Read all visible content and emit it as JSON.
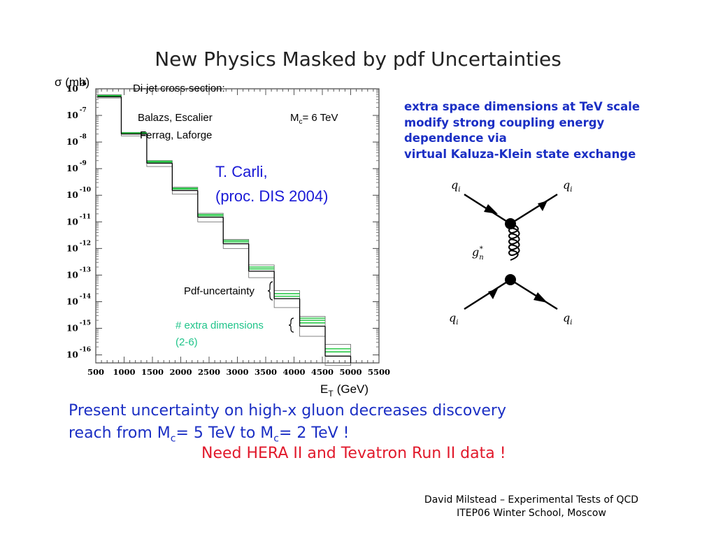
{
  "slide": {
    "title": "New Physics Masked by pdf Uncertainties",
    "blue_note": [
      "extra space dimensions at TeV scale",
      "modify strong coupling energy",
      "dependence  via",
      "virtual Kaluza-Klein state exchange"
    ],
    "conclusion_part1": "Present uncertainty on high-x gluon decreases discovery",
    "conclusion_part2_prefix": "reach from M",
    "conclusion_sub": "c",
    "conclusion_part2_mid": "= 5 TeV to M",
    "conclusion_part2_suffix": "= 2 TeV !",
    "need_line": "Need HERA II and Tevatron Run II data !",
    "footer": [
      "David Milstead – Experimental Tests of QCD",
      "ITEP06 Winter School, Moscow"
    ]
  },
  "chart_data": {
    "type": "bar",
    "title": "Di-jet cross-section:",
    "ylabel": "σ (mb)",
    "xlabel": "E",
    "xlabel_sub": "T",
    "xlabel_unit": "(GeV)",
    "xlim": [
      500,
      5500
    ],
    "ylim_log10": [
      -16.3,
      -6
    ],
    "yscale": "log",
    "x_ticks": [
      "500",
      "1000",
      "1500",
      "2000",
      "2500",
      "3000",
      "3500",
      "4000",
      "4500",
      "5000",
      "5500"
    ],
    "y_ticks": [
      {
        "base": "10",
        "exp": "-6"
      },
      {
        "base": "10",
        "exp": "-7"
      },
      {
        "base": "10",
        "exp": "-8"
      },
      {
        "base": "10",
        "exp": "-9"
      },
      {
        "base": "10",
        "exp": "-10"
      },
      {
        "base": "10",
        "exp": "-11"
      },
      {
        "base": "10",
        "exp": "-12"
      },
      {
        "base": "10",
        "exp": "-13"
      },
      {
        "base": "10",
        "exp": "-14"
      },
      {
        "base": "10",
        "exp": "-15"
      },
      {
        "base": "10",
        "exp": "-16"
      }
    ],
    "bins": [
      {
        "lo": 530,
        "hi": 950,
        "sm": 5e-07,
        "unc_up": 6e-07,
        "unc_lo": 4.5e-07,
        "xd": [
          5.3e-07,
          5.6e-07
        ]
      },
      {
        "lo": 950,
        "hi": 1400,
        "sm": 2e-08,
        "unc_up": 2.3e-08,
        "unc_lo": 1.7e-08,
        "xd": [
          2.1e-08,
          2.2e-08
        ]
      },
      {
        "lo": 1400,
        "hi": 1850,
        "sm": 1.6e-09,
        "unc_up": 2e-09,
        "unc_lo": 1.2e-09,
        "xd": [
          1.75e-09,
          1.9e-09
        ]
      },
      {
        "lo": 1850,
        "hi": 2300,
        "sm": 1.5e-10,
        "unc_up": 2e-10,
        "unc_lo": 1.1e-10,
        "xd": [
          1.7e-10,
          1.85e-10
        ]
      },
      {
        "lo": 2300,
        "hi": 2750,
        "sm": 1.5e-11,
        "unc_up": 2.1e-11,
        "unc_lo": 1e-11,
        "xd": [
          1.7e-11,
          1.9e-11
        ]
      },
      {
        "lo": 2750,
        "hi": 3200,
        "sm": 1.5e-12,
        "unc_up": 2.2e-12,
        "unc_lo": 1e-12,
        "xd": [
          1.75e-12,
          2e-12
        ]
      },
      {
        "lo": 3200,
        "hi": 3650,
        "sm": 1.4e-13,
        "unc_up": 2.4e-13,
        "unc_lo": 8e-14,
        "xd": [
          1.7e-13,
          2e-13
        ]
      },
      {
        "lo": 3650,
        "hi": 4100,
        "sm": 1.3e-14,
        "unc_up": 2.6e-14,
        "unc_lo": 6e-15,
        "xd": [
          1.6e-14,
          2e-14
        ]
      },
      {
        "lo": 4100,
        "hi": 4550,
        "sm": 1.2e-15,
        "unc_up": 2.8e-15,
        "unc_lo": 5e-16,
        "xd": [
          1.6e-15,
          2e-15,
          2.4e-15
        ]
      },
      {
        "lo": 4550,
        "hi": 5000,
        "sm": 9e-17,
        "unc_up": 2.5e-16,
        "unc_lo": 4e-17,
        "xd": [
          1.3e-16,
          1.7e-16
        ]
      }
    ],
    "annotations": {
      "authors_1": "Balazs, Escalier",
      "authors_2": "Ferrag, Laforge",
      "mc_prefix": "M",
      "mc_sub": "c",
      "mc_suffix": "= 6 TeV",
      "carli_1": "T. Carli,",
      "carli_2": "(proc. DIS 2004)",
      "pdf_unc": "Pdf-uncertainty",
      "xd_1": "# extra dimensions",
      "xd_2": "(2-6)"
    },
    "colors": {
      "sm": "#000000",
      "extra_dim": "#19c43a",
      "green_text": "#20c48a"
    }
  },
  "diagram": {
    "q_top_left": "q",
    "q_top_right": "q",
    "q_bot_left": "q",
    "q_bot_right": "q",
    "q_sub": "i",
    "graviton": "g",
    "graviton_sub": "n",
    "graviton_sup": "*"
  }
}
